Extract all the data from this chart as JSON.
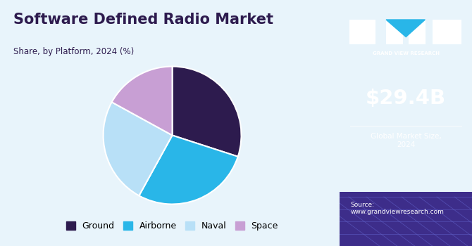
{
  "title": "Software Defined Radio Market",
  "subtitle": "Share, by Platform, 2024 (%)",
  "slices": [
    {
      "label": "Ground",
      "value": 30,
      "color": "#2d1b4e"
    },
    {
      "label": "Airborne",
      "value": 28,
      "color": "#29b6e8"
    },
    {
      "label": "Naval",
      "value": 25,
      "color": "#b8e0f7"
    },
    {
      "label": "Space",
      "value": 17,
      "color": "#c89fd4"
    }
  ],
  "start_angle": 90,
  "bg_color": "#e8f4fb",
  "right_panel_color": "#3a1a6e",
  "right_panel_bottom_color": "#3d2d8a",
  "market_size": "$29.4B",
  "market_label": "Global Market Size,\n2024",
  "source_text": "Source:\nwww.grandviewresearch.com",
  "logo_text": "GRAND VIEW RESEARCH",
  "title_color": "#2d1b4e",
  "subtitle_color": "#2d1b4e",
  "legend_labels": [
    "Ground",
    "Airborne",
    "Naval",
    "Space"
  ],
  "legend_colors": [
    "#2d1b4e",
    "#29b6e8",
    "#b8e0f7",
    "#c89fd4"
  ],
  "top_bar_color": "#29b6e8"
}
